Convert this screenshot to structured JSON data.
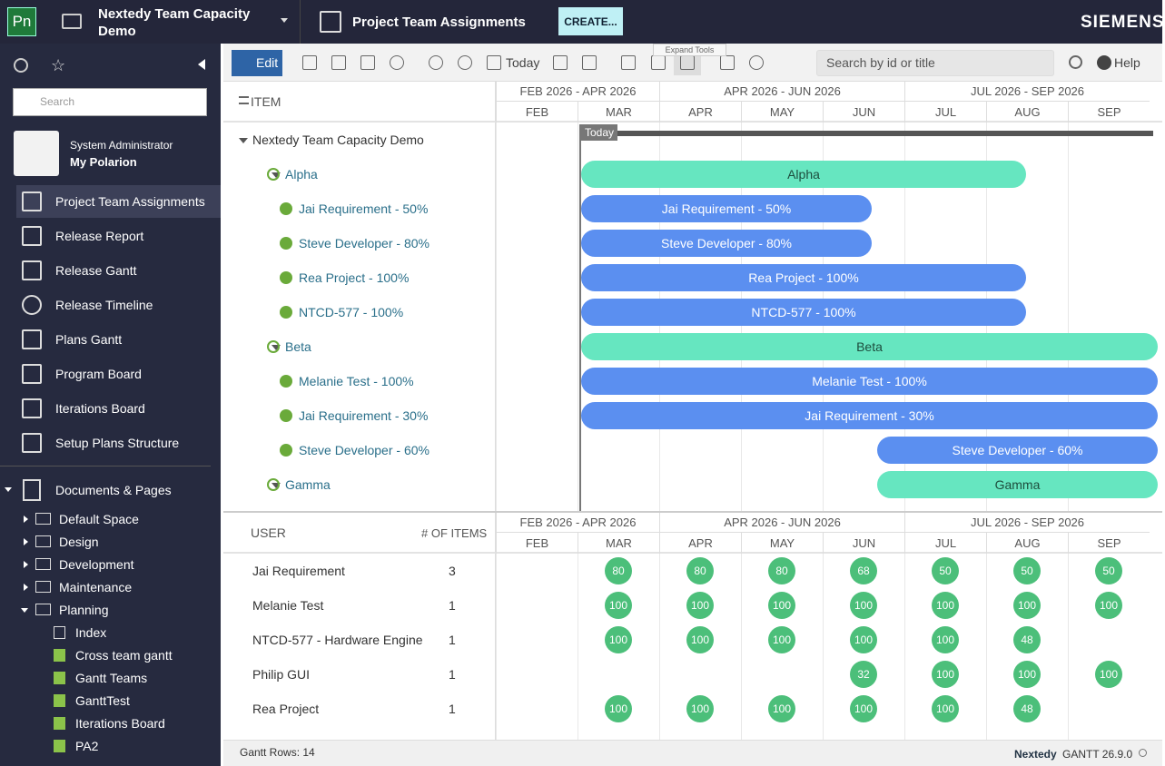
{
  "header": {
    "logo": "Pn",
    "project": "Nextedy Team Capacity Demo",
    "page_title": "Project Team Assignments",
    "create_button": "CREATE...",
    "brand": "SIEMENS"
  },
  "sidebar": {
    "search_placeholder": "Search",
    "user_name": "System Administrator",
    "user_link": "My Polarion",
    "nav": [
      "Project Team Assignments",
      "Release Report",
      "Release Gantt",
      "Release Timeline",
      "Plans Gantt",
      "Program Board",
      "Iterations Board",
      "Setup Plans Structure"
    ],
    "documents_title": "Documents & Pages",
    "spaces": [
      "Default Space",
      "Design",
      "Development",
      "Maintenance",
      "Planning"
    ],
    "planning_docs": [
      "Index",
      "Cross team gantt",
      "Gantt Teams",
      "GanttTest",
      "Iterations Board",
      "PA2"
    ]
  },
  "toolbar": {
    "edit": "Edit",
    "today": "Today",
    "tooltip": "Expand Tools",
    "search_placeholder": "Search by id or title",
    "help": "Help"
  },
  "gantt": {
    "item_header": "ITEM",
    "quarters": [
      "FEB 2026 - APR 2026",
      "APR 2026 - JUN 2026",
      "JUL 2026 - SEP 2026"
    ],
    "months": [
      "FEB",
      "MAR",
      "APR",
      "MAY",
      "JUN",
      "JUL",
      "AUG",
      "SEP"
    ],
    "today_label": "Today",
    "items": [
      {
        "label": "Nextedy Team Capacity Demo",
        "level": 0
      },
      {
        "label": "Alpha",
        "level": 1
      },
      {
        "label": "Jai Requirement - 50%",
        "level": 2
      },
      {
        "label": "Steve Developer - 80%",
        "level": 2
      },
      {
        "label": "Rea Project - 100%",
        "level": 2
      },
      {
        "label": "NTCD-577 - 100%",
        "level": 2
      },
      {
        "label": "Beta",
        "level": 1
      },
      {
        "label": "Melanie Test - 100%",
        "level": 2
      },
      {
        "label": "Jai Requirement - 30%",
        "level": 2
      },
      {
        "label": "Steve Developer - 60%",
        "level": 2
      },
      {
        "label": "Gamma",
        "level": 1
      }
    ]
  },
  "resources": {
    "user_header": "USER",
    "count_header": "# OF ITEMS",
    "rows": [
      {
        "user": "Jai Requirement",
        "count": 3,
        "load": [
          null,
          80,
          80,
          80,
          68,
          50,
          50,
          50
        ]
      },
      {
        "user": "Melanie Test",
        "count": 1,
        "load": [
          null,
          100,
          100,
          100,
          100,
          100,
          100,
          100
        ]
      },
      {
        "user": "NTCD-577 - Hardware Engine",
        "count": 1,
        "load": [
          null,
          100,
          100,
          100,
          100,
          100,
          48,
          null
        ]
      },
      {
        "user": "Philip GUI",
        "count": 1,
        "load": [
          null,
          null,
          null,
          null,
          32,
          100,
          100,
          100
        ]
      },
      {
        "user": "Rea Project",
        "count": 1,
        "load": [
          null,
          100,
          100,
          100,
          100,
          100,
          48,
          null
        ]
      }
    ]
  },
  "footer": {
    "rows": "Gantt Rows: 14",
    "vendor": "Nextedy",
    "version": "GANTT 26.9.0"
  }
}
